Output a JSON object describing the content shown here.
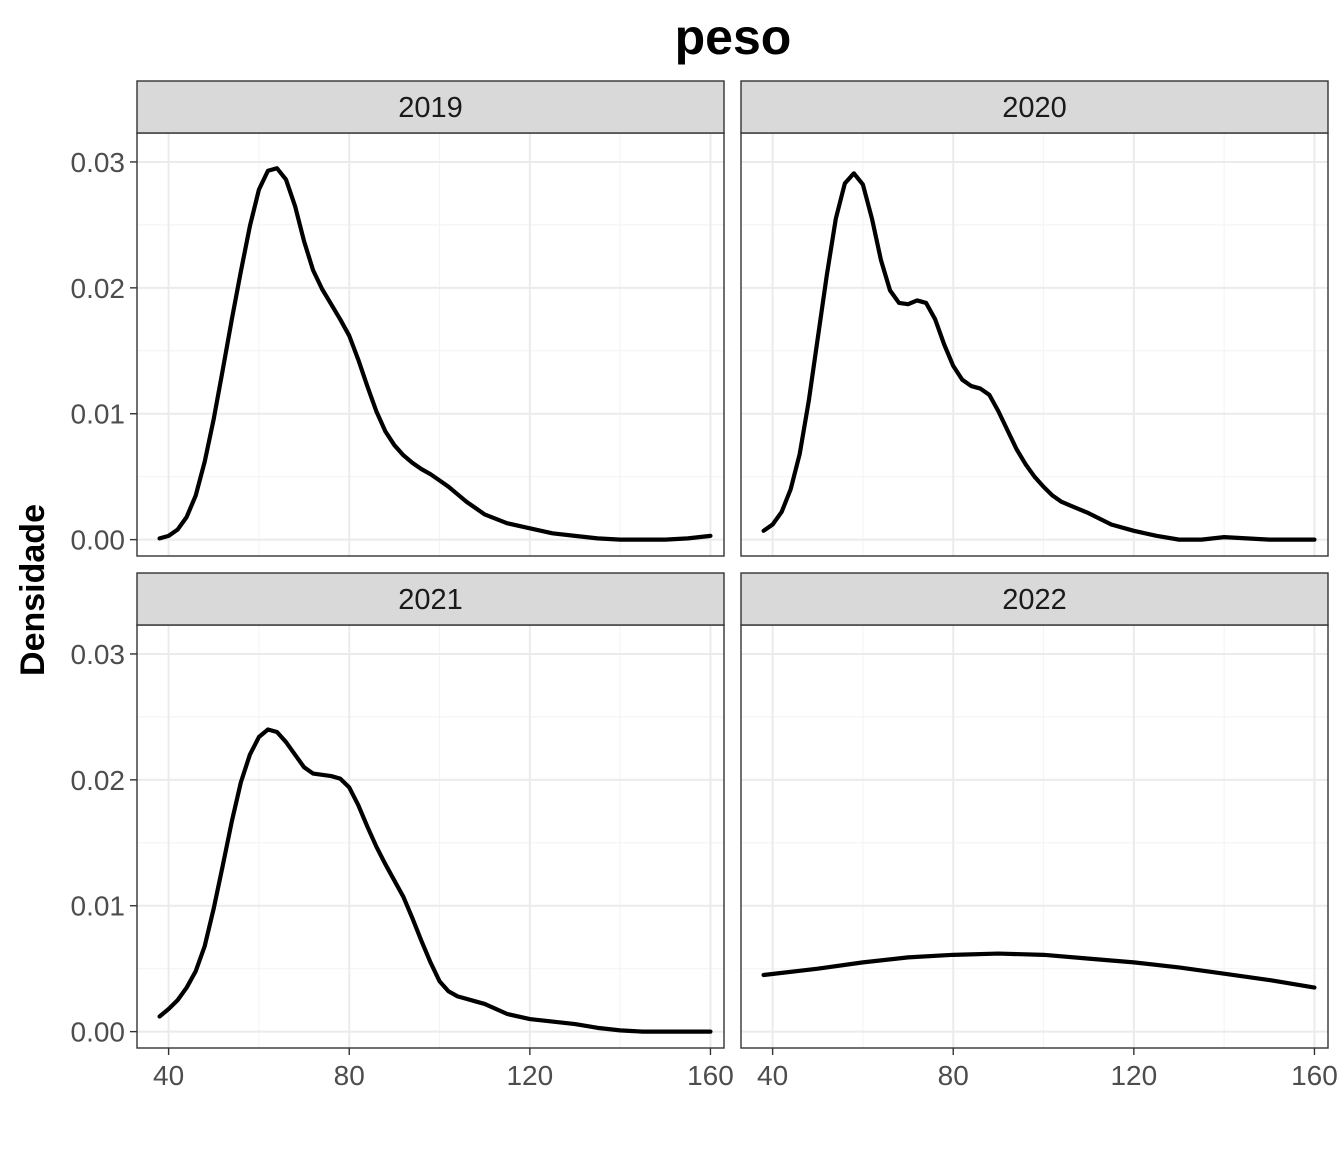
{
  "chart_data": {
    "type": "line",
    "title": "peso",
    "xlabel": "",
    "ylabel": "Densidade",
    "xlim": [
      33,
      163
    ],
    "ylim": [
      -0.0013,
      0.0323
    ],
    "x_ticks": [
      40,
      80,
      120,
      160
    ],
    "y_ticks": [
      0.0,
      0.01,
      0.02,
      0.03
    ],
    "y_tick_labels": [
      "0.00",
      "0.01",
      "0.02",
      "0.03"
    ],
    "grid": true,
    "legend": "none",
    "line_color": "#000000",
    "panels": [
      {
        "label": "2019",
        "x": [
          38,
          40,
          42,
          44,
          46,
          48,
          50,
          52,
          54,
          56,
          58,
          60,
          62,
          64,
          66,
          68,
          70,
          72,
          74,
          76,
          78,
          80,
          82,
          84,
          86,
          88,
          90,
          92,
          94,
          96,
          98,
          100,
          102,
          104,
          106,
          108,
          110,
          115,
          120,
          125,
          130,
          135,
          140,
          145,
          150,
          155,
          160
        ],
        "y": [
          0.0001,
          0.0003,
          0.0008,
          0.0018,
          0.0035,
          0.0062,
          0.0096,
          0.0135,
          0.0175,
          0.0213,
          0.0249,
          0.0278,
          0.0293,
          0.0295,
          0.0286,
          0.0265,
          0.0237,
          0.0214,
          0.0199,
          0.0187,
          0.0175,
          0.0162,
          0.0143,
          0.0122,
          0.0102,
          0.0086,
          0.0075,
          0.0067,
          0.0061,
          0.0056,
          0.0052,
          0.0047,
          0.0042,
          0.0036,
          0.003,
          0.0025,
          0.002,
          0.0013,
          0.0009,
          0.0005,
          0.0003,
          0.0001,
          0.0,
          0.0,
          0.0,
          0.0001,
          0.0003
        ]
      },
      {
        "label": "2020",
        "x": [
          38,
          40,
          42,
          44,
          46,
          48,
          50,
          52,
          54,
          56,
          58,
          60,
          62,
          64,
          66,
          68,
          70,
          72,
          74,
          76,
          78,
          80,
          82,
          84,
          86,
          88,
          90,
          92,
          94,
          96,
          98,
          100,
          102,
          104,
          106,
          108,
          110,
          115,
          120,
          125,
          130,
          135,
          140,
          145,
          150,
          155,
          160
        ],
        "y": [
          0.0007,
          0.0012,
          0.0022,
          0.004,
          0.0068,
          0.011,
          0.016,
          0.021,
          0.0255,
          0.0283,
          0.0291,
          0.0282,
          0.0255,
          0.0222,
          0.0198,
          0.0188,
          0.0187,
          0.019,
          0.0188,
          0.0175,
          0.0155,
          0.0138,
          0.0127,
          0.0122,
          0.012,
          0.0115,
          0.0102,
          0.0087,
          0.0072,
          0.006,
          0.005,
          0.0042,
          0.0035,
          0.003,
          0.0027,
          0.0024,
          0.0021,
          0.0012,
          0.0007,
          0.0003,
          0.0,
          0.0,
          0.0002,
          0.0001,
          0.0,
          0.0,
          0.0
        ]
      },
      {
        "label": "2021",
        "x": [
          38,
          40,
          42,
          44,
          46,
          48,
          50,
          52,
          54,
          56,
          58,
          60,
          62,
          64,
          66,
          68,
          70,
          72,
          74,
          76,
          78,
          80,
          82,
          84,
          86,
          88,
          90,
          92,
          94,
          96,
          98,
          100,
          102,
          104,
          106,
          108,
          110,
          115,
          120,
          125,
          130,
          135,
          140,
          145,
          150,
          155,
          160
        ],
        "y": [
          0.0012,
          0.0018,
          0.0025,
          0.0035,
          0.0048,
          0.0068,
          0.0098,
          0.0132,
          0.0167,
          0.0198,
          0.022,
          0.0234,
          0.024,
          0.0238,
          0.023,
          0.022,
          0.021,
          0.0205,
          0.0204,
          0.0203,
          0.0201,
          0.0194,
          0.018,
          0.0163,
          0.0147,
          0.0133,
          0.012,
          0.0107,
          0.009,
          0.0072,
          0.0055,
          0.004,
          0.0032,
          0.0028,
          0.0026,
          0.0024,
          0.0022,
          0.0014,
          0.001,
          0.0008,
          0.0006,
          0.0003,
          0.0001,
          0.0,
          0.0,
          0.0,
          0.0
        ]
      },
      {
        "label": "2022",
        "x": [
          38,
          50,
          60,
          70,
          80,
          90,
          100,
          110,
          120,
          130,
          140,
          150,
          160
        ],
        "y": [
          0.0045,
          0.005,
          0.0055,
          0.0059,
          0.0061,
          0.0062,
          0.0061,
          0.0058,
          0.0055,
          0.0051,
          0.0046,
          0.0041,
          0.0035
        ]
      }
    ]
  }
}
